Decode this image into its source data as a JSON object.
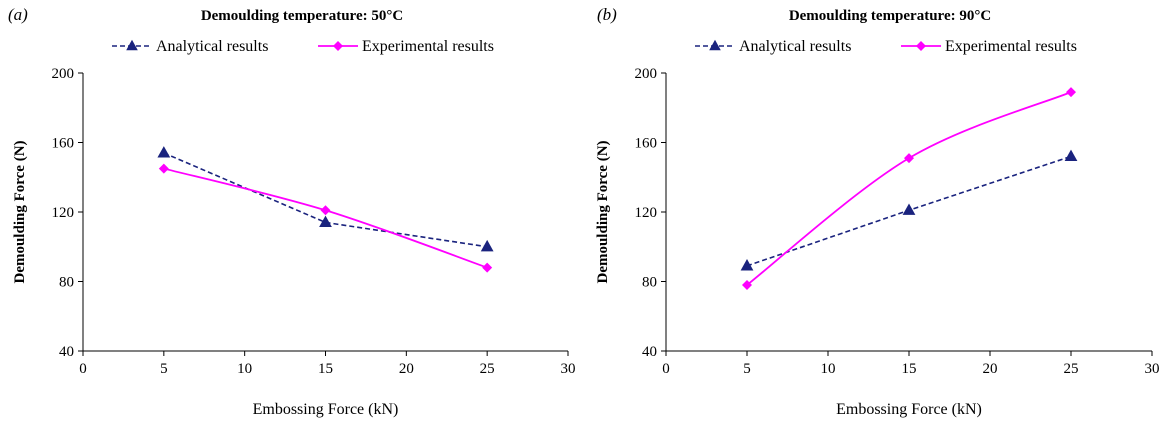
{
  "colors": {
    "analytical": "#1a237e",
    "experimental": "#ff00ff",
    "axis": "#000000"
  },
  "chart_data": [
    {
      "type": "line",
      "panel_label": "(a)",
      "title": "Demoulding temperature: 50°C",
      "xlabel": "Embossing Force (kN)",
      "ylabel": "Demoulding Force (N)",
      "xlim": [
        0,
        30
      ],
      "ylim": [
        40,
        200
      ],
      "xticks": [
        0,
        5,
        10,
        15,
        20,
        25,
        30
      ],
      "yticks": [
        40,
        80,
        120,
        160,
        200
      ],
      "grid": false,
      "legend_position": "top",
      "series": [
        {
          "name": "Analytical results",
          "style": "dashed",
          "marker": "triangle",
          "x": [
            5,
            15,
            25
          ],
          "y": [
            154,
            114,
            100
          ]
        },
        {
          "name": "Experimental results",
          "style": "smooth",
          "marker": "diamond",
          "x": [
            5,
            15,
            25
          ],
          "y": [
            145,
            121,
            88
          ]
        }
      ]
    },
    {
      "type": "line",
      "panel_label": "(b)",
      "title": "Demoulding temperature: 90°C",
      "xlabel": "Embossing Force (kN)",
      "ylabel": "Demoulding Force (N)",
      "xlim": [
        0,
        30
      ],
      "ylim": [
        40,
        200
      ],
      "xticks": [
        0,
        5,
        10,
        15,
        20,
        25,
        30
      ],
      "yticks": [
        40,
        80,
        120,
        160,
        200
      ],
      "grid": false,
      "legend_position": "top",
      "series": [
        {
          "name": "Analytical results",
          "style": "dashed",
          "marker": "triangle",
          "x": [
            5,
            15,
            25
          ],
          "y": [
            89,
            121,
            152
          ]
        },
        {
          "name": "Experimental results",
          "style": "smooth",
          "marker": "diamond",
          "x": [
            5,
            15,
            25
          ],
          "y": [
            78,
            151,
            189
          ]
        }
      ]
    }
  ]
}
